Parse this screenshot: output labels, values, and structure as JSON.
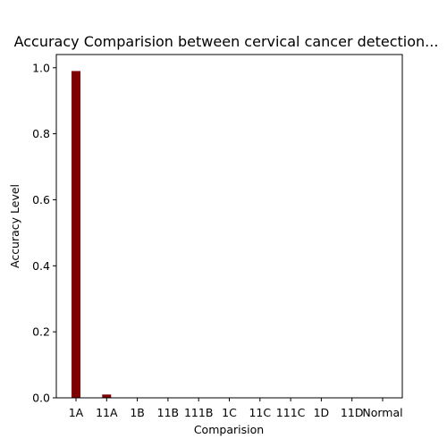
{
  "chart_data": {
    "type": "bar",
    "title": "Accuracy Comparision between cervical cancer detection...",
    "xlabel": "Comparision",
    "ylabel": "Accuracy Level",
    "categories": [
      "1A",
      "11A",
      "1B",
      "11B",
      "111B",
      "1C",
      "11C",
      "111C",
      "1D",
      "11D",
      "Normal"
    ],
    "values": [
      0.99,
      0.01,
      0,
      0,
      0,
      0,
      0,
      0,
      0,
      0,
      0
    ],
    "ylim": [
      0,
      1.04
    ],
    "yticks": [
      0.0,
      0.2,
      0.4,
      0.6,
      0.8,
      1.0
    ],
    "ytick_labels": [
      "0.0",
      "0.2",
      "0.4",
      "0.6",
      "0.8",
      "1.0"
    ],
    "bar_color": "#7f0000",
    "grid": false,
    "legend": "none"
  }
}
